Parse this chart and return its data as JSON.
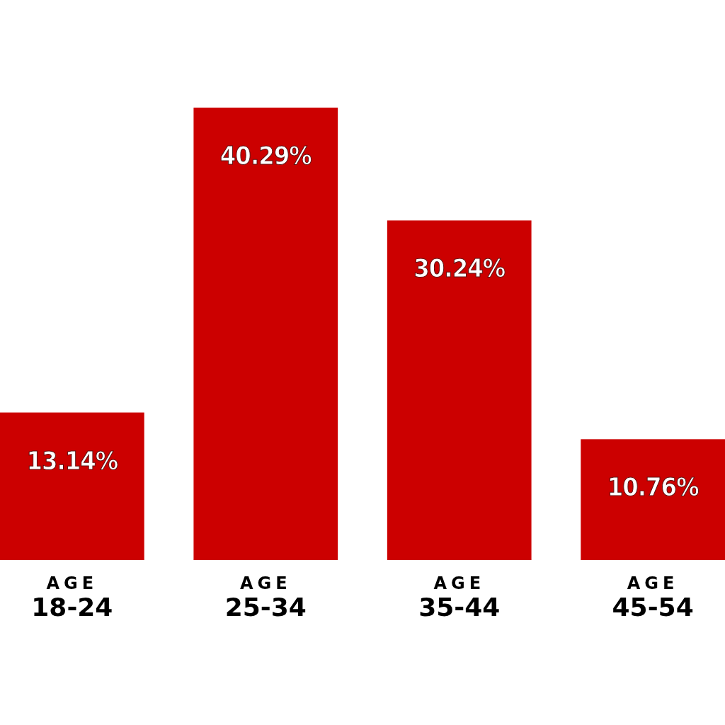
{
  "chart_data": {
    "type": "bar",
    "categories": [
      "AGE\n18-24",
      "AGE\n25-34",
      "AGE\n35-44",
      "AGE\n45-54"
    ],
    "values": [
      13.14,
      40.29,
      30.24,
      10.76
    ],
    "value_labels": [
      "13.14%",
      "40.29%",
      "30.24%",
      "10.76%"
    ],
    "color": "#cc0000"
  }
}
